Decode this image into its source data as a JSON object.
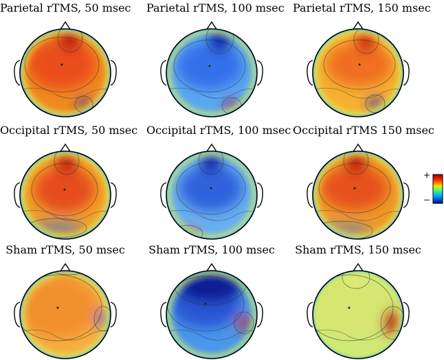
{
  "figure": {
    "panels": [
      {
        "title": "Parietal rTMS, 50 msec",
        "blobs": [
          {
            "c": "#b01010",
            "o": 0.95
          },
          {
            "c": "#e8401c",
            "o": 0.8
          },
          {
            "c": "#1428b8",
            "o": 0.95
          }
        ],
        "base": "#f08a20"
      },
      {
        "title": "Parietal rTMS, 100 msec",
        "blobs": [
          {
            "c": "#0b1c9c",
            "o": 0.95
          },
          {
            "c": "#2a5ee8",
            "o": 0.75
          },
          {
            "c": "#c01010",
            "o": 0.95
          }
        ],
        "base": "#5aa8f0"
      },
      {
        "title": "Parietal rTMS, 150 msec",
        "blobs": [
          {
            "c": "#c81e10",
            "o": 0.95
          },
          {
            "c": "#ee5a1e",
            "o": 0.75
          },
          {
            "c": "#1a2cc0",
            "o": 0.95
          }
        ],
        "base": "#f6b030"
      },
      {
        "title": "Occipital rTMS, 50 msec",
        "blobs": [
          {
            "c": "#b81810",
            "o": 0.95
          },
          {
            "c": "#e2381a",
            "o": 0.8
          },
          {
            "c": "#2a70e0",
            "o": 0.6
          }
        ],
        "base": "#f2a028"
      },
      {
        "title": "Occipital rTMS, 100 msec",
        "blobs": [
          {
            "c": "#0a1a98",
            "o": 0.95
          },
          {
            "c": "#2050d8",
            "o": 0.8
          },
          {
            "c": "#e84a18",
            "o": 0.7
          }
        ],
        "base": "#68b0f0"
      },
      {
        "title": "Occipital rTMS 150 msec",
        "blobs": [
          {
            "c": "#b01210",
            "o": 0.95
          },
          {
            "c": "#e44018",
            "o": 0.8
          },
          {
            "c": "#3a80e8",
            "o": 0.6
          }
        ],
        "base": "#f09a26"
      },
      {
        "title": "Sham rTMS, 50 msec",
        "blobs": [
          {
            "c": "#c02010",
            "o": 0.9
          },
          {
            "c": "#f07a22",
            "o": 0.6
          },
          {
            "c": "#2a60e0",
            "o": 0.85
          }
        ],
        "base": "#f4b040"
      },
      {
        "title": "Sham rTMS, 100 msec",
        "blobs": [
          {
            "c": "#0a1890",
            "o": 0.95
          },
          {
            "c": "#2048d0",
            "o": 0.8
          },
          {
            "c": "#d02a10",
            "o": 0.9
          }
        ],
        "base": "#4a98ec"
      },
      {
        "title": "Sham rTMS, 150 msec",
        "blobs": [
          {
            "c": "#f2f080",
            "o": 0.5
          },
          {
            "c": "#e8e060",
            "o": 0.3
          },
          {
            "c": "#c01810",
            "o": 0.95
          }
        ],
        "base": "#cfe878"
      }
    ]
  },
  "colorbar": {
    "plus": "+",
    "minus": "−",
    "top_color": "#c00000",
    "bottom_color": "#0000c0"
  }
}
